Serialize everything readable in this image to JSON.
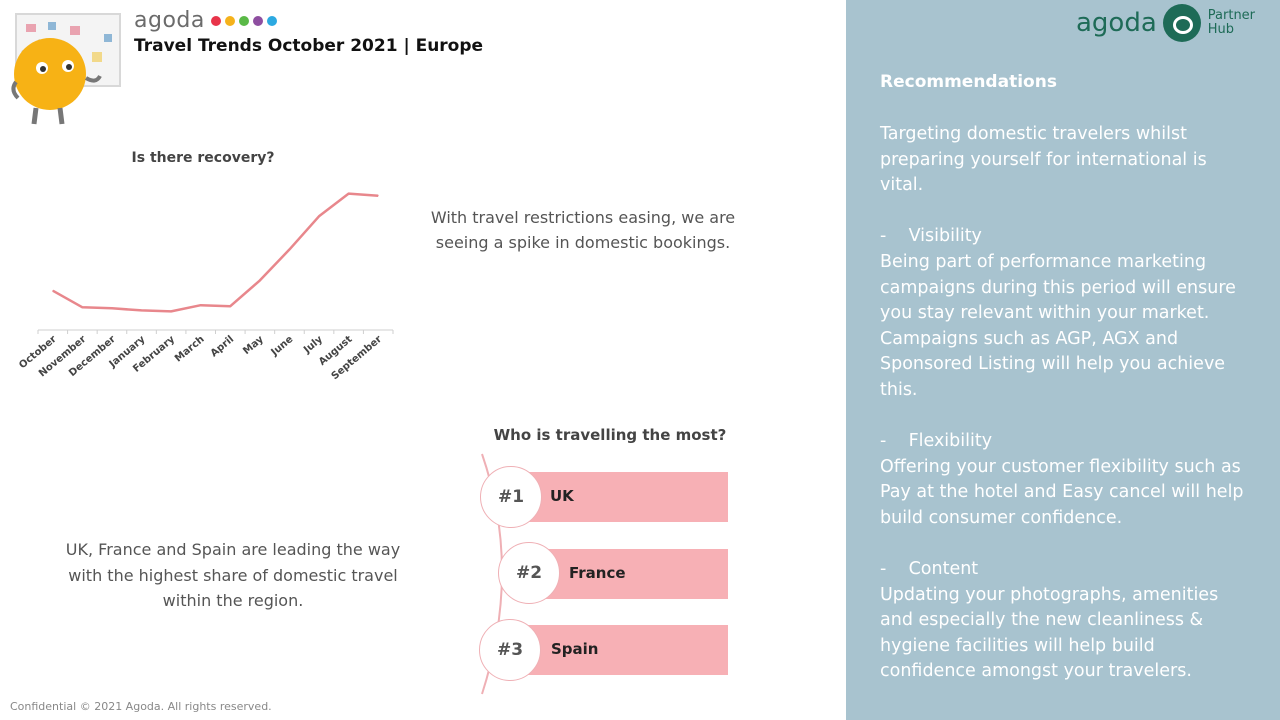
{
  "header": {
    "brand": "agoda",
    "brand_dot_colors": [
      "#e8344a",
      "#f5b21b",
      "#5ab947",
      "#8e4ea0",
      "#2ca9e1"
    ],
    "title": "Travel Trends October 2021 | Europe"
  },
  "partner_logo": {
    "word": "agoda",
    "line1": "Partner",
    "line2": "Hub"
  },
  "recovery": {
    "title": "Is there recovery?",
    "description": "With travel restrictions easing, we are seeing a spike in domestic bookings."
  },
  "chart_data": {
    "type": "line",
    "categories": [
      "October",
      "November",
      "December",
      "January",
      "February",
      "March",
      "April",
      "May",
      "June",
      "July",
      "August",
      "September"
    ],
    "series": [
      {
        "values": [
          38,
          22,
          21,
          19,
          18,
          24,
          23,
          48,
          78,
          110,
          132,
          130
        ]
      }
    ],
    "title": "Is there recovery?",
    "xlabel": "",
    "ylabel": "",
    "ylim": [
      0,
      150
    ],
    "y_axis_visible": false,
    "grid": false,
    "line_color": "#e8878c"
  },
  "ranking": {
    "title": "Who is travelling the most?",
    "items": [
      {
        "rank": "#1",
        "country": "UK"
      },
      {
        "rank": "#2",
        "country": "France"
      },
      {
        "rank": "#3",
        "country": "Spain"
      }
    ],
    "bar_color": "#f7b0b5"
  },
  "leading_text": "UK, France and Spain are leading the way with the highest share of domestic travel within the region.",
  "footer": "Confidential © 2021 Agoda. All rights reserved.",
  "recommendations": {
    "heading": "Recommendations",
    "intro": "Targeting domestic travelers whilst preparing yourself for international is vital.",
    "sections": [
      {
        "title": "-    Visibility",
        "body": "Being part of performance marketing campaigns during this period will ensure you stay relevant within your market. Campaigns such as AGP, AGX and Sponsored Listing will help you achieve this."
      },
      {
        "title": "-    Flexibility",
        "body": "Offering your customer flexibility such as Pay at the hotel and Easy cancel will help build consumer confidence."
      },
      {
        "title": "-    Content",
        "body": "Updating your photographs, amenities and especially the new cleanliness & hygiene facilities will help build confidence amongst your travelers."
      }
    ],
    "panel_color": "#a8c3cf"
  }
}
